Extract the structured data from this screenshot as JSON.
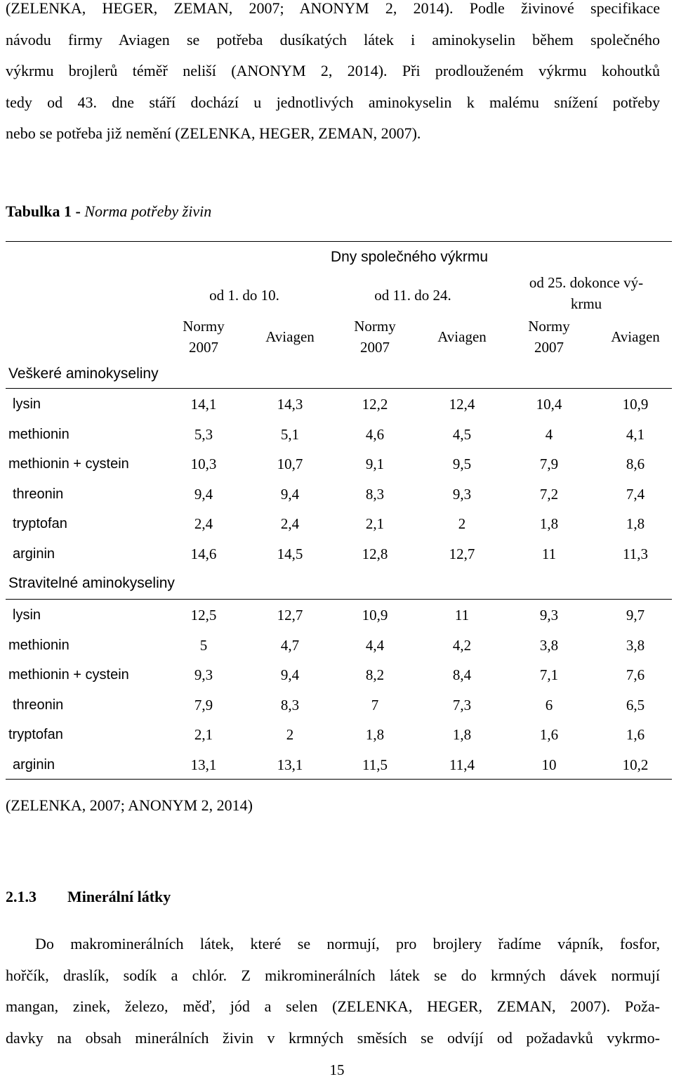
{
  "intro_lines": [
    "(ZELENKA, HEGER, ZEMAN, 2007; ANONYM 2, 2014). Podle živinové specifikace",
    "návodu firmy Aviagen se potřeba dusíkatých látek i aminokyselin během společného",
    "výkrmu brojlerů téměř neliší (ANONYM 2, 2014). Při prodlouženém výkrmu kohoutků",
    "tedy od 43. dne stáří dochází u jednotlivých aminokyselin k malému snížení potřeby",
    "nebo se potřeba již nemění (ZELENKA, HEGER, ZEMAN, 2007)."
  ],
  "table": {
    "caption_label": "Tabulka 1 -",
    "caption_title": "Norma potřeby živin",
    "super_header": "Dny společného výkrmu",
    "periods": [
      "od 1. do 10.",
      "od 11. do 24.",
      "od 25. dokonce vý-krmu"
    ],
    "period3_line1": "od 25. dokonce vý-",
    "period3_line2": "krmu",
    "norm_label_line1": "Normy",
    "norm_label_line2": "2007",
    "aviagen_label": "Aviagen",
    "group1_label": "Veškeré aminokyseliny",
    "group1_rows": [
      {
        "name": "lysin",
        "values": [
          "14,1",
          "14,3",
          "12,2",
          "12,4",
          "10,4",
          "10,9"
        ]
      },
      {
        "name": "methionin",
        "values": [
          "5,3",
          "5,1",
          "4,6",
          "4,5",
          "4",
          "4,1"
        ]
      },
      {
        "name": "methionin + cystein",
        "values": [
          "10,3",
          "10,7",
          "9,1",
          "9,5",
          "7,9",
          "8,6"
        ]
      },
      {
        "name": "threonin",
        "values": [
          "9,4",
          "9,4",
          "8,3",
          "9,3",
          "7,2",
          "7,4"
        ]
      },
      {
        "name": "tryptofan",
        "values": [
          "2,4",
          "2,4",
          "2,1",
          "2",
          "1,8",
          "1,8"
        ]
      },
      {
        "name": "arginin",
        "values": [
          "14,6",
          "14,5",
          "12,8",
          "12,7",
          "11",
          "11,3"
        ]
      }
    ],
    "group2_label": "Stravitelné aminokyseliny",
    "group2_rows": [
      {
        "name": "lysin",
        "values": [
          "12,5",
          "12,7",
          "10,9",
          "11",
          "9,3",
          "9,7"
        ]
      },
      {
        "name": "methionin",
        "values": [
          "5",
          "4,7",
          "4,4",
          "4,2",
          "3,8",
          "3,8"
        ]
      },
      {
        "name": "methionin + cystein",
        "values": [
          "9,3",
          "9,4",
          "8,2",
          "8,4",
          "7,1",
          "7,6"
        ]
      },
      {
        "name": "threonin",
        "values": [
          "7,9",
          "8,3",
          "7",
          "7,3",
          "6",
          "6,5"
        ]
      },
      {
        "name": "tryptofan",
        "values": [
          "2,1",
          "2",
          "1,8",
          "1,8",
          "1,6",
          "1,6"
        ]
      },
      {
        "name": "arginin",
        "values": [
          "13,1",
          "13,1",
          "11,5",
          "11,4",
          "10",
          "10,2"
        ]
      }
    ],
    "source": "(ZELENKA, 2007; ANONYM 2, 2014)"
  },
  "section": {
    "number": "2.1.3",
    "title": "Minerální látky"
  },
  "section_lines": [
    "Do makrominerálních látek, které se normují, pro brojlery řadíme vápník, fosfor,",
    "hořčík, draslík, sodík a chlór. Z mikrominerálních látek se do krmných dávek normují",
    "mangan, zinek, železo, měď, jód a selen (ZELENKA, HEGER, ZEMAN, 2007). Poža-",
    "davky na obsah minerálních živin v krmných směsích se odvíjí od požadavků vykrmo-"
  ],
  "page_number": "15"
}
